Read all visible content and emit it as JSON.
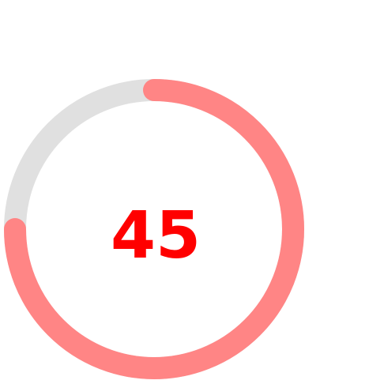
{
  "gauge": {
    "value": "45",
    "fraction": 0.75,
    "start_angle_deg": -90,
    "colors": {
      "track": "#e0e0e0",
      "progress": "#ff8585",
      "value_text": "#ff0000"
    }
  }
}
